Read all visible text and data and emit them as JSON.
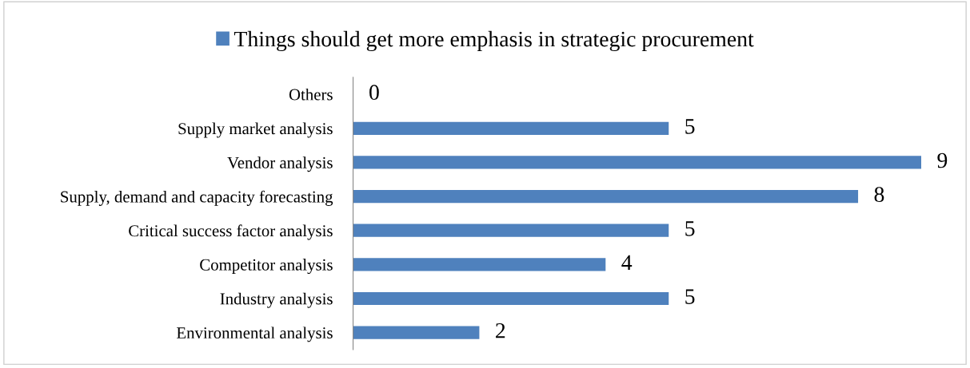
{
  "chart_data": {
    "type": "bar",
    "orientation": "horizontal",
    "categories": [
      "Others",
      "Supply market analysis",
      "Vendor analysis",
      "Supply, demand and capacity forecasting",
      "Critical success factor analysis",
      "Competitor analysis",
      "Industry analysis",
      "Environmental analysis"
    ],
    "series": [
      {
        "name": "Things should get more emphasis in strategic procurement",
        "color": "#4f81bd",
        "values": [
          0,
          5,
          9,
          8,
          5,
          4,
          5,
          2
        ]
      }
    ],
    "data_labels": true,
    "legend": "top",
    "grid": false,
    "tick_labels": "y"
  }
}
